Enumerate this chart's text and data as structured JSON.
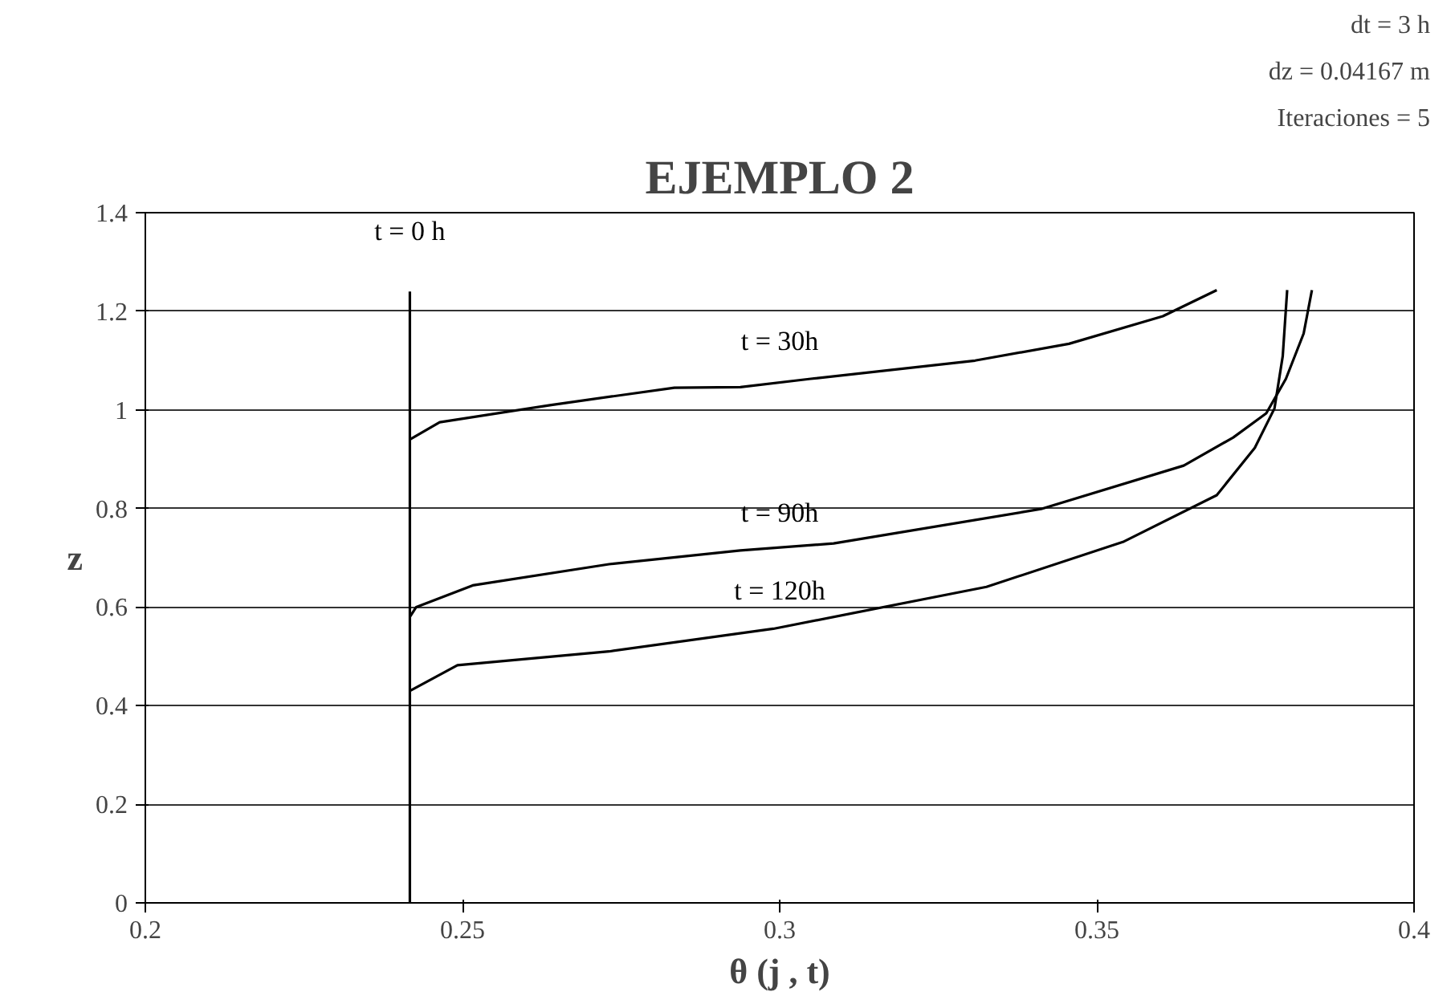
{
  "chart_data": {
    "type": "line",
    "title": "EJEMPLO 2",
    "xlabel": "θ (j , t)",
    "ylabel": "z",
    "xlim": [
      0.2,
      0.4
    ],
    "xticks": [
      0.2,
      0.25,
      0.3,
      0.35,
      0.4
    ],
    "ylim": [
      0,
      1.4
    ],
    "yticks": [
      0,
      0.2,
      0.4,
      0.6,
      0.8,
      1,
      1.2,
      1.4
    ],
    "grid": "y",
    "legend": false,
    "marker": "none",
    "line_style": "solid",
    "series": [
      {
        "name": "t = 0 h",
        "color": "#000000",
        "x": [
          0.2417,
          0.2417
        ],
        "values": [
          0,
          1.24
        ]
      },
      {
        "name": "t = 30h",
        "color": "#000000",
        "x": [
          0.2417,
          0.2464,
          0.264,
          0.2834,
          0.2938,
          0.3049,
          0.3308,
          0.3456,
          0.3604,
          0.3689
        ],
        "values": [
          0.94,
          0.975,
          1.01,
          1.045,
          1.046,
          1.063,
          1.1,
          1.134,
          1.19,
          1.243
        ]
      },
      {
        "name": "t = 90h",
        "color": "#000000",
        "x": [
          0.2417,
          0.2427,
          0.2516,
          0.2731,
          0.2938,
          0.3085,
          0.3412,
          0.3637,
          0.3715,
          0.3767,
          0.3798,
          0.3826,
          0.3839
        ],
        "values": [
          0.58,
          0.6,
          0.644,
          0.687,
          0.715,
          0.729,
          0.799,
          0.887,
          0.944,
          0.993,
          1.063,
          1.155,
          1.243
        ]
      },
      {
        "name": "t = 120h",
        "color": "#000000",
        "x": [
          0.2417,
          0.2492,
          0.2731,
          0.299,
          0.3326,
          0.3541,
          0.3689,
          0.3749,
          0.378,
          0.3793,
          0.38
        ],
        "values": [
          0.43,
          0.482,
          0.51,
          0.556,
          0.641,
          0.732,
          0.827,
          0.923,
          1.003,
          1.109,
          1.243
        ]
      }
    ],
    "annotations": [
      "dt = 3 h",
      "dz = 0.04167 m",
      "Iteraciones = 5"
    ]
  }
}
